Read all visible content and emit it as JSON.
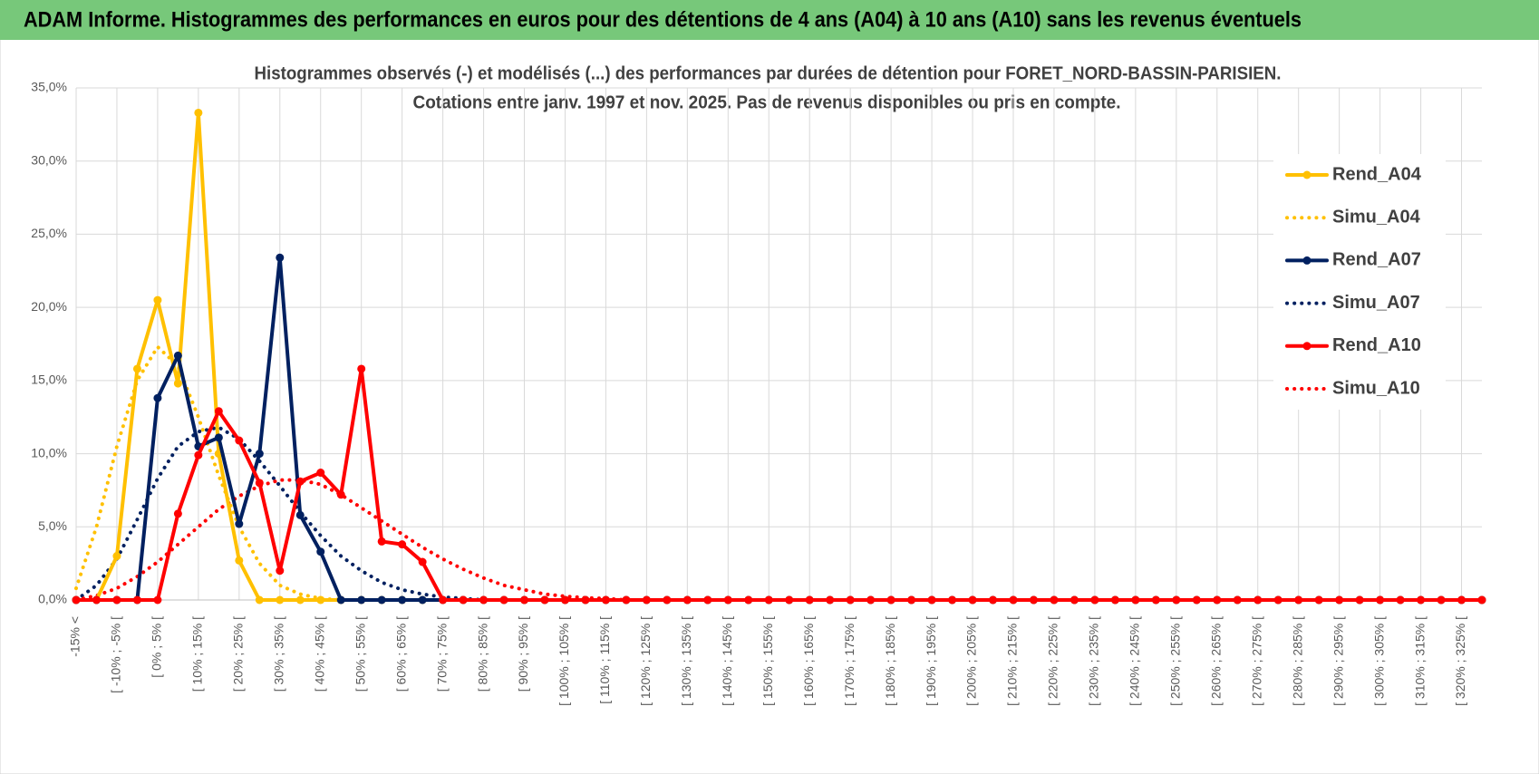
{
  "header": {
    "title": "ADAM Informe. Histogrammes des performances en euros pour des détentions de 4 ans (A04) à 10 ans (A10) sans les revenus éventuels"
  },
  "chart_data": {
    "type": "line",
    "title": "Histogrammes observés (-) et modélisés (...) des performances par durées de détention pour FORET_NORD-BASSIN-PARISIEN.",
    "subtitle": "Cotations entre janv. 1997 et nov. 2025. Pas de revenus disponibles ou pris en compte.",
    "categories": [
      "-15% <",
      null,
      "[ -10% ; -5% [",
      null,
      "[ 0% ; 5% [",
      null,
      "[ 10% ; 15% [",
      null,
      "[ 20% ; 25% [",
      null,
      "[ 30% ; 35% [",
      null,
      "[ 40% ; 45% [",
      null,
      "[ 50% ; 55% [",
      null,
      "[ 60% ; 65% [",
      null,
      "[ 70% ; 75% [",
      null,
      "[ 80% ; 85% [",
      null,
      "[ 90% ; 95% [",
      null,
      "[ 100% ; 105% [",
      null,
      "[ 110% ; 115% [",
      null,
      "[ 120% ; 125% [",
      null,
      "[ 130% ; 135% [",
      null,
      "[ 140% ; 145% [",
      null,
      "[ 150% ; 155% [",
      null,
      "[ 160% ; 165% [",
      null,
      "[ 170% ; 175% [",
      null,
      "[ 180% ; 185% [",
      null,
      "[ 190% ; 195% [",
      null,
      "[ 200% ; 205% [",
      null,
      "[ 210% ; 215% [",
      null,
      "[ 220% ; 225% [",
      null,
      "[ 230% ; 235% [",
      null,
      "[ 240% ; 245% [",
      null,
      "[ 250% ; 255% [",
      null,
      "[ 260% ; 265% [",
      null,
      "[ 270% ; 275% [",
      null,
      "[ 280% ; 285% [",
      null,
      "[ 290% ; 295% [",
      null,
      "[ 300% ; 305% [",
      null,
      "[ 310% ; 315% [",
      null,
      "[ 320% ; 325% [",
      null
    ],
    "series": [
      {
        "name": "Rend_A04",
        "color": "#ffc000",
        "style": "solid",
        "markers": true,
        "values": [
          0,
          0,
          3,
          15.8,
          20.5,
          14.8,
          33.3,
          10,
          2.7,
          0,
          0,
          0,
          0,
          0,
          0,
          0,
          0,
          0,
          0,
          0,
          0,
          0,
          0,
          0,
          0,
          0,
          0,
          0,
          0,
          0,
          0,
          0,
          0,
          0,
          0,
          0,
          0,
          0,
          0,
          0,
          0,
          0,
          0,
          0,
          0,
          0,
          0,
          0,
          0,
          0,
          0,
          0,
          0,
          0,
          0,
          0,
          0,
          0,
          0,
          0,
          0,
          0,
          0,
          0,
          0,
          0,
          0,
          0,
          0,
          0
        ]
      },
      {
        "name": "Simu_A04",
        "color": "#ffc000",
        "style": "dotted",
        "markers": false,
        "values": [
          0.8,
          5,
          10.5,
          15,
          17.3,
          16,
          12.5,
          8.5,
          5,
          2.5,
          1,
          0.4,
          0.1,
          0,
          0,
          0,
          0,
          0,
          0,
          0,
          0,
          0,
          0,
          0,
          0,
          0,
          0,
          0,
          0,
          0,
          0,
          0,
          0,
          0,
          0,
          0,
          0,
          0,
          0,
          0,
          0,
          0,
          0,
          0,
          0,
          0,
          0,
          0,
          0,
          0,
          0,
          0,
          0,
          0,
          0,
          0,
          0,
          0,
          0,
          0,
          0,
          0,
          0,
          0,
          0,
          0,
          0,
          0,
          0,
          0
        ]
      },
      {
        "name": "Rend_A07",
        "color": "#002060",
        "style": "solid",
        "markers": true,
        "values": [
          0,
          0,
          0,
          0,
          13.8,
          16.7,
          10.5,
          11.1,
          5.2,
          10,
          23.4,
          5.8,
          3.3,
          0,
          0,
          0,
          0,
          0,
          0,
          0,
          0,
          0,
          0,
          0,
          0,
          0,
          0,
          0,
          0,
          0,
          0,
          0,
          0,
          0,
          0,
          0,
          0,
          0,
          0,
          0,
          0,
          0,
          0,
          0,
          0,
          0,
          0,
          0,
          0,
          0,
          0,
          0,
          0,
          0,
          0,
          0,
          0,
          0,
          0,
          0,
          0,
          0,
          0,
          0,
          0,
          0,
          0,
          0,
          0,
          0
        ]
      },
      {
        "name": "Simu_A07",
        "color": "#002060",
        "style": "dotted",
        "markers": false,
        "values": [
          0,
          1,
          2.8,
          5.5,
          8.3,
          10.5,
          11.5,
          11.8,
          11,
          9.5,
          7.8,
          6,
          4.4,
          3,
          2,
          1.2,
          0.7,
          0.4,
          0.2,
          0.1,
          0,
          0,
          0,
          0,
          0,
          0,
          0,
          0,
          0,
          0,
          0,
          0,
          0,
          0,
          0,
          0,
          0,
          0,
          0,
          0,
          0,
          0,
          0,
          0,
          0,
          0,
          0,
          0,
          0,
          0,
          0,
          0,
          0,
          0,
          0,
          0,
          0,
          0,
          0,
          0,
          0,
          0,
          0,
          0,
          0,
          0,
          0,
          0,
          0,
          0
        ]
      },
      {
        "name": "Rend_A10",
        "color": "#ff0000",
        "style": "solid",
        "markers": true,
        "values": [
          0,
          0,
          0,
          0,
          0,
          5.9,
          9.9,
          12.9,
          10.9,
          8,
          2,
          8.1,
          8.7,
          7.2,
          15.8,
          4,
          3.8,
          2.6,
          0,
          0,
          0,
          0,
          0,
          0,
          0,
          0,
          0,
          0,
          0,
          0,
          0,
          0,
          0,
          0,
          0,
          0,
          0,
          0,
          0,
          0,
          0,
          0,
          0,
          0,
          0,
          0,
          0,
          0,
          0,
          0,
          0,
          0,
          0,
          0,
          0,
          0,
          0,
          0,
          0,
          0,
          0,
          0,
          0,
          0,
          0,
          0,
          0,
          0,
          0,
          0
        ]
      },
      {
        "name": "Simu_A10",
        "color": "#ff0000",
        "style": "dotted",
        "markers": false,
        "values": [
          0,
          0.3,
          0.8,
          1.6,
          2.6,
          3.8,
          5,
          6.2,
          7.1,
          7.8,
          8.2,
          8.2,
          7.9,
          7.2,
          6.3,
          5.4,
          4.5,
          3.6,
          2.8,
          2.1,
          1.5,
          1,
          0.7,
          0.4,
          0.25,
          0.15,
          0.1,
          0,
          0,
          0,
          0,
          0,
          0,
          0,
          0,
          0,
          0,
          0,
          0,
          0,
          0,
          0,
          0,
          0,
          0,
          0,
          0,
          0,
          0,
          0,
          0,
          0,
          0,
          0,
          0,
          0,
          0,
          0,
          0,
          0,
          0,
          0,
          0,
          0,
          0,
          0,
          0,
          0,
          0,
          0
        ]
      }
    ],
    "ylim": [
      0,
      35
    ],
    "yticks": [
      {
        "value": 0,
        "label": "0,0%"
      },
      {
        "value": 5,
        "label": "5,0%"
      },
      {
        "value": 10,
        "label": "10,0%"
      },
      {
        "value": 15,
        "label": "15,0%"
      },
      {
        "value": 20,
        "label": "20,0%"
      },
      {
        "value": 25,
        "label": "25,0%"
      },
      {
        "value": 30,
        "label": "30,0%"
      },
      {
        "value": 35,
        "label": "35,0%"
      }
    ],
    "grid": true,
    "legend": "right"
  }
}
